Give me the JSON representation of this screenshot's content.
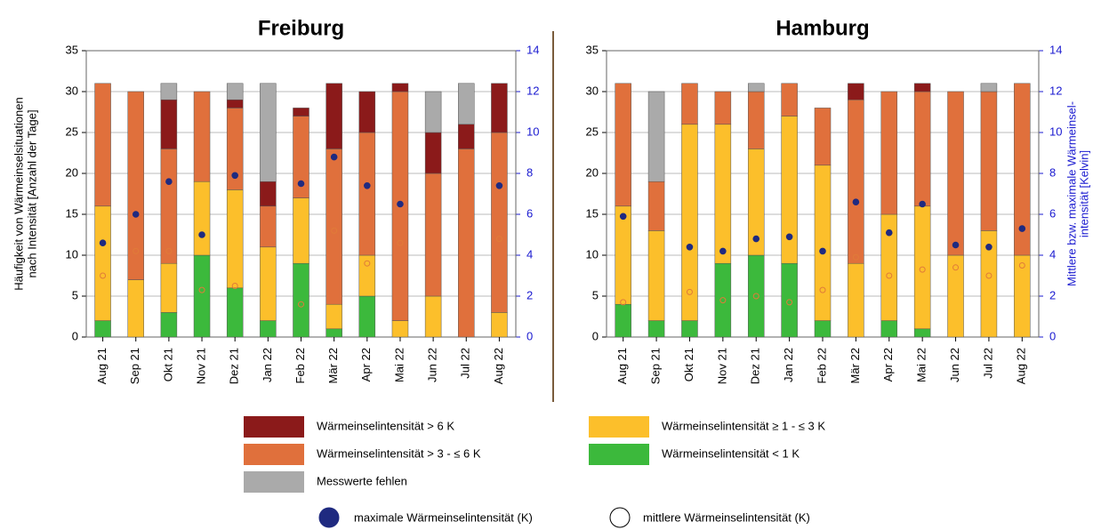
{
  "chart_data": [
    {
      "type": "bar",
      "stacked": true,
      "title": "Freiburg",
      "y_label": [
        "Häufigkeit von Wärmeinselsituationen",
        "nach Intensität [Anzahl der Tage]"
      ],
      "categories": [
        "Aug 21",
        "Sep 21",
        "Okt 21",
        "Nov 21",
        "Dez 21",
        "Jan 22",
        "Feb 22",
        "Mär 22",
        "Apr 22",
        "Mai 22",
        "Jun 22",
        "Jul 22",
        "Aug 22"
      ],
      "series": [
        {
          "name": "Wärmeinselintensität < 1 K",
          "color": "#3cb93c",
          "values": [
            2,
            0,
            3,
            10,
            6,
            2,
            9,
            1,
            5,
            0,
            0,
            0,
            0
          ]
        },
        {
          "name": "Wärmeinselintensität ≥ 1 - ≤ 3 K",
          "color": "#fcbf2b",
          "values": [
            14,
            7,
            6,
            9,
            12,
            9,
            8,
            3,
            5,
            2,
            5,
            0,
            3
          ]
        },
        {
          "name": "Wärmeinselintensität > 3 - ≤ 6 K",
          "color": "#e0703c",
          "values": [
            15,
            23,
            14,
            11,
            10,
            5,
            10,
            19,
            15,
            28,
            15,
            23,
            22
          ]
        },
        {
          "name": "Wärmeinselintensität > 6 K",
          "color": "#8b1a1a",
          "values": [
            0,
            0,
            6,
            0,
            1,
            3,
            1,
            8,
            5,
            1,
            5,
            3,
            6
          ]
        },
        {
          "name": "Messwerte fehlen",
          "color": "#aaaaaa",
          "values": [
            0,
            0,
            2,
            0,
            2,
            12,
            0,
            0,
            0,
            0,
            5,
            5,
            0
          ]
        }
      ],
      "points": [
        {
          "name": "maximale Wärmeinselintensität (K)",
          "type": "scatter",
          "axis": "y2",
          "color": "#1f2a80",
          "filled": true,
          "values": [
            4.6,
            6.0,
            7.6,
            5.0,
            7.9,
            null,
            7.5,
            8.8,
            7.4,
            6.5,
            null,
            null,
            7.4
          ]
        },
        {
          "name": "mittlere Wärmeinselintensität (K)",
          "type": "scatter",
          "axis": "y2",
          "color": "#e07b39",
          "filled": false,
          "values": [
            3.0,
            4.2,
            4.2,
            2.3,
            2.5,
            null,
            1.6,
            5.2,
            3.6,
            4.6,
            null,
            null,
            4.8
          ]
        }
      ],
      "ylim": [
        0,
        35
      ],
      "yticks": [
        0,
        5,
        10,
        15,
        20,
        25,
        30,
        35
      ],
      "y2lim": [
        0,
        14
      ],
      "y2ticks": [
        0,
        2,
        4,
        6,
        8,
        10,
        12,
        14
      ],
      "y2color": "#1a1ad0",
      "grid": true
    },
    {
      "type": "bar",
      "stacked": true,
      "title": "Hamburg",
      "y2_label": [
        "Mittlere bzw. maximale Wärmeinsel-",
        "intensität [Kelvin]"
      ],
      "categories": [
        "Aug 21",
        "Sep 21",
        "Okt 21",
        "Nov 21",
        "Dez 21",
        "Jan 22",
        "Feb 22",
        "Mär 22",
        "Apr 22",
        "Mai 22",
        "Jun 22",
        "Jul 22",
        "Aug 22"
      ],
      "series": [
        {
          "color": "#3cb93c",
          "values": [
            4,
            2,
            2,
            9,
            10,
            9,
            2,
            0,
            2,
            1,
            0,
            0,
            0
          ]
        },
        {
          "color": "#fcbf2b",
          "values": [
            12,
            11,
            24,
            17,
            13,
            18,
            19,
            9,
            13,
            15,
            10,
            13,
            10
          ]
        },
        {
          "color": "#e0703c",
          "values": [
            15,
            6,
            5,
            4,
            7,
            4,
            7,
            20,
            15,
            14,
            20,
            17,
            21
          ]
        },
        {
          "color": "#8b1a1a",
          "values": [
            0,
            0,
            0,
            0,
            0,
            0,
            0,
            2,
            0,
            1,
            0,
            0,
            0
          ]
        },
        {
          "color": "#aaaaaa",
          "values": [
            0,
            11,
            0,
            0,
            1,
            0,
            0,
            0,
            0,
            0,
            0,
            1,
            0
          ]
        }
      ],
      "points": [
        {
          "type": "scatter",
          "axis": "y2",
          "color": "#1f2a80",
          "filled": true,
          "values": [
            5.9,
            null,
            4.4,
            4.2,
            4.8,
            4.9,
            4.2,
            6.6,
            5.1,
            6.5,
            4.5,
            4.4,
            5.3
          ]
        },
        {
          "type": "scatter",
          "axis": "y2",
          "color": "#e07b39",
          "filled": false,
          "values": [
            1.7,
            null,
            2.2,
            1.8,
            2.0,
            1.7,
            2.3,
            3.9,
            3.0,
            3.3,
            3.4,
            3.0,
            3.5
          ]
        }
      ],
      "ylim": [
        0,
        35
      ],
      "yticks": [
        0,
        5,
        10,
        15,
        20,
        25,
        30,
        35
      ],
      "y2lim": [
        0,
        14
      ],
      "y2ticks": [
        0,
        2,
        4,
        6,
        8,
        10,
        12,
        14
      ],
      "y2color": "#1a1ad0",
      "grid": true
    }
  ]
}
